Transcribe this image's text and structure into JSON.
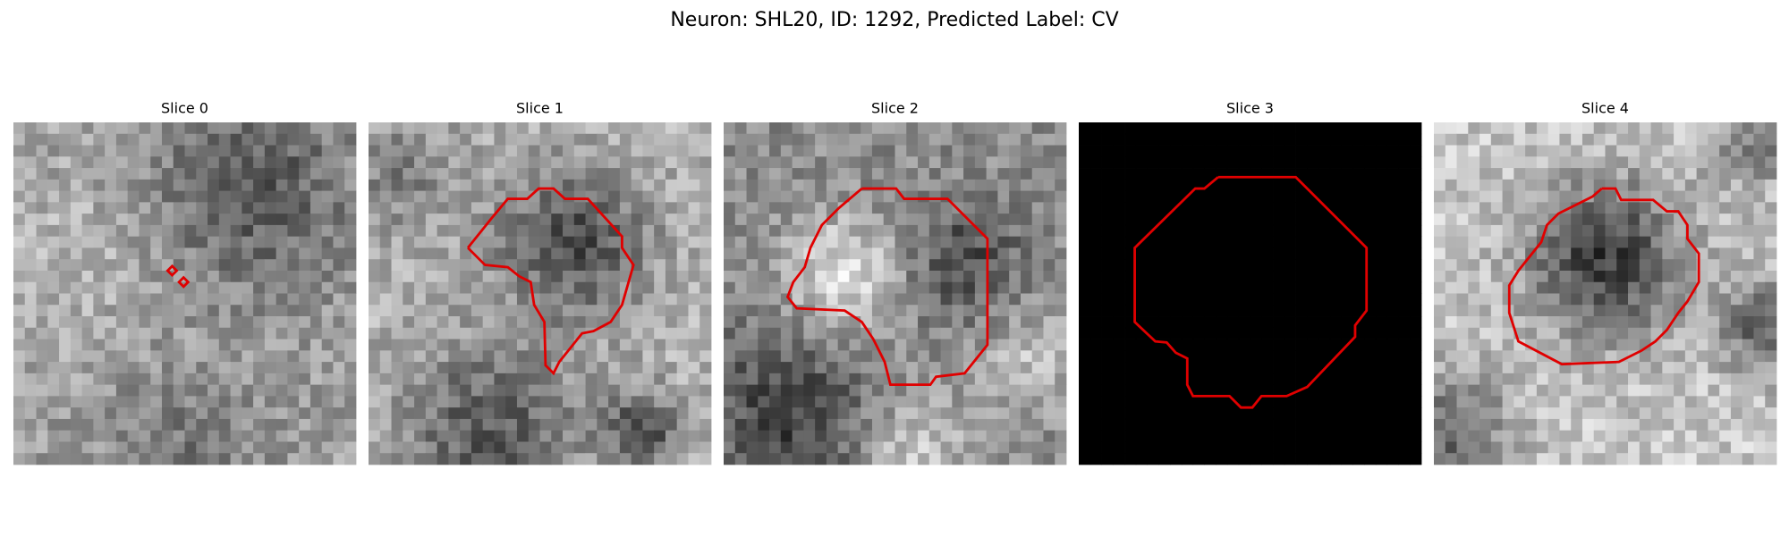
{
  "title": "Neuron: SHL20, ID: 1292, Predicted Label: CV",
  "panels": [
    {
      "title": "Slice 0"
    },
    {
      "title": "Slice 1"
    },
    {
      "title": "Slice 2"
    },
    {
      "title": "Slice 3"
    },
    {
      "title": "Slice 4"
    }
  ]
}
